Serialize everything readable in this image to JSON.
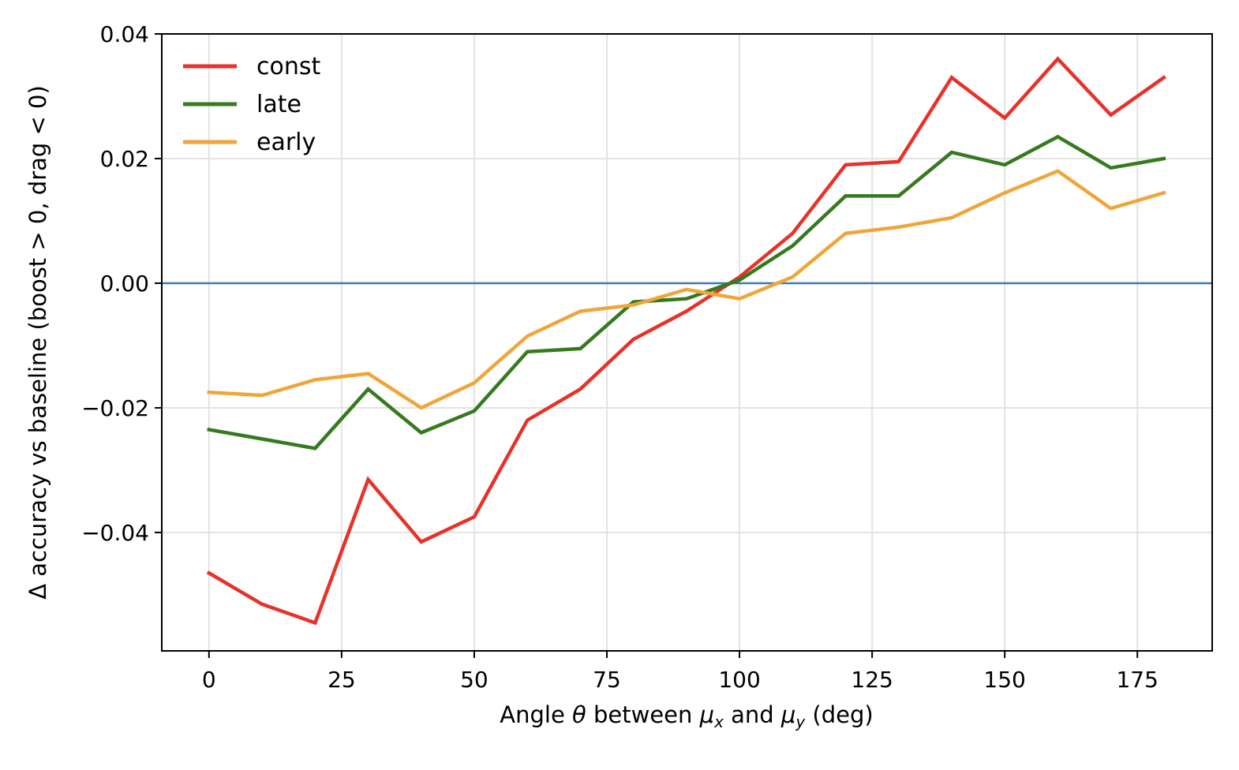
{
  "chart_data": {
    "type": "line",
    "title": "",
    "xlabel_parts": {
      "prefix": "Angle ",
      "theta": "θ",
      "middle": " between ",
      "mu": "μ",
      "sub_x": "x",
      "and": " and ",
      "sub_y": "y",
      "suffix": " (deg)"
    },
    "ylabel": "Δ accuracy vs baseline (boost > 0, drag < 0)",
    "x": [
      0,
      10,
      20,
      30,
      40,
      50,
      60,
      70,
      80,
      90,
      100,
      110,
      120,
      130,
      140,
      150,
      160,
      170,
      180
    ],
    "series": [
      {
        "name": "const",
        "color": "#e8312a",
        "values": [
          -0.0465,
          -0.0515,
          -0.0545,
          -0.0315,
          -0.0415,
          -0.0375,
          -0.022,
          -0.017,
          -0.009,
          -0.0045,
          0.001,
          0.008,
          0.019,
          0.0195,
          0.033,
          0.0265,
          0.036,
          0.027,
          0.033
        ]
      },
      {
        "name": "late",
        "color": "#357a1f",
        "values": [
          -0.0235,
          -0.025,
          -0.0265,
          -0.017,
          -0.024,
          -0.0205,
          -0.011,
          -0.0105,
          -0.003,
          -0.0025,
          0.0005,
          0.006,
          0.014,
          0.014,
          0.021,
          0.019,
          0.0235,
          0.0185,
          0.02
        ]
      },
      {
        "name": "early",
        "color": "#f0a53a",
        "values": [
          -0.0175,
          -0.018,
          -0.0155,
          -0.0145,
          -0.02,
          -0.016,
          -0.0085,
          -0.0045,
          -0.0035,
          -0.001,
          -0.0025,
          0.001,
          0.008,
          0.009,
          0.0105,
          0.0145,
          0.018,
          0.012,
          0.0145
        ]
      }
    ],
    "xticks": [
      0,
      25,
      50,
      75,
      100,
      125,
      150,
      175
    ],
    "xtick_labels": [
      "0",
      "25",
      "50",
      "75",
      "100",
      "125",
      "150",
      "175"
    ],
    "yticks": [
      -0.04,
      -0.02,
      0.0,
      0.02,
      0.04
    ],
    "ytick_labels": [
      "−0.04",
      "−0.02",
      "0.00",
      "0.02",
      "0.04"
    ],
    "xlim": [
      -8.9,
      189.1
    ],
    "ylim": [
      -0.059,
      0.04
    ],
    "reference_line": {
      "y": 0.0,
      "color": "#3b78b3"
    },
    "grid": true,
    "legend_position": "top-left"
  }
}
